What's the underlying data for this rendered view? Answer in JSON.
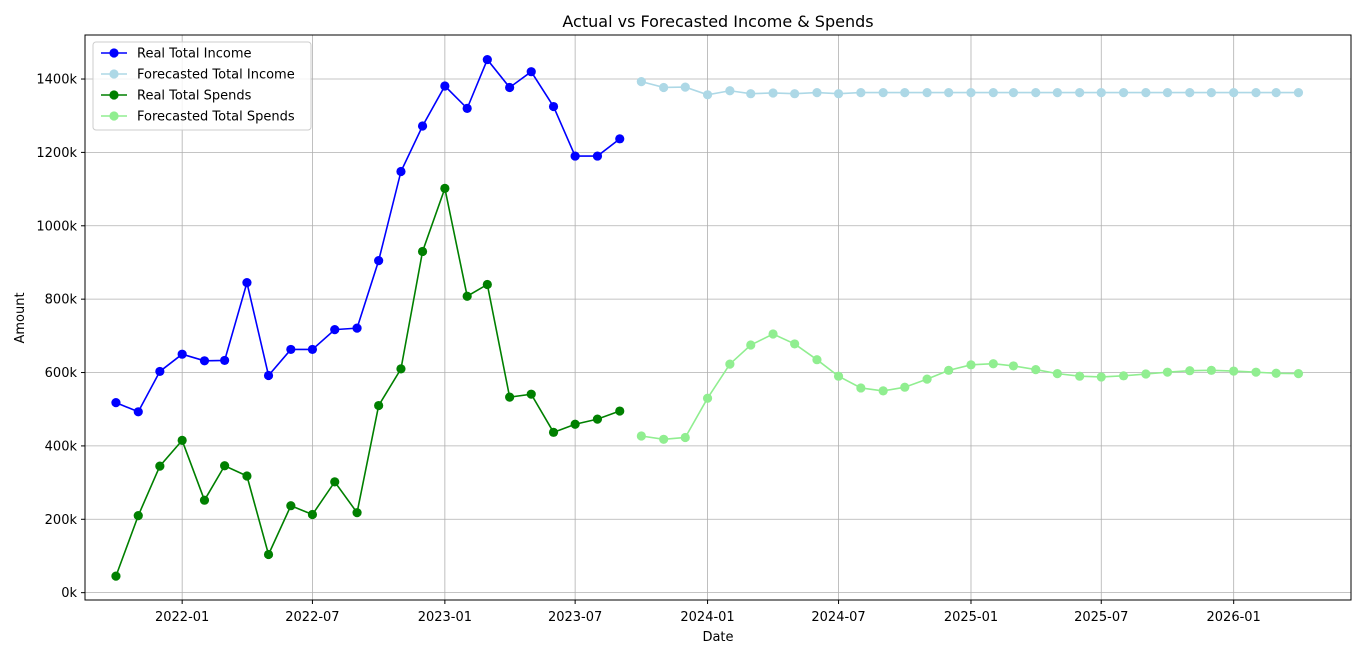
{
  "chart_data": {
    "type": "line",
    "title": "Actual vs Forecasted Income & Spends",
    "xlabel": "Date",
    "ylabel": "Amount",
    "x_tick_labels": [
      "2022-01",
      "2022-07",
      "2023-01",
      "2023-07",
      "2024-01",
      "2024-07",
      "2025-01",
      "2025-07",
      "2026-01"
    ],
    "y_tick_labels": [
      "0k",
      "200k",
      "400k",
      "600k",
      "800k",
      "1000k",
      "1200k",
      "1400k"
    ],
    "y_ticks": [
      0,
      200000,
      400000,
      600000,
      800000,
      1000000,
      1200000,
      1400000
    ],
    "xlim": [
      "2021-08-19",
      "2026-06-13"
    ],
    "ylim": [
      -20000,
      1520000
    ],
    "grid": true,
    "legend_position": "top-left",
    "series": [
      {
        "name": "Real Total Income",
        "color": "#0000ff",
        "x": [
          "2021-10-01",
          "2021-11-01",
          "2021-12-01",
          "2022-01-01",
          "2022-02-01",
          "2022-03-01",
          "2022-04-01",
          "2022-05-01",
          "2022-06-01",
          "2022-07-01",
          "2022-08-01",
          "2022-09-01",
          "2022-10-01",
          "2022-11-01",
          "2022-12-01",
          "2023-01-01",
          "2023-02-01",
          "2023-03-01",
          "2023-04-01",
          "2023-05-01",
          "2023-06-01",
          "2023-07-01",
          "2023-08-01",
          "2023-09-01"
        ],
        "values": [
          518000,
          493000,
          603000,
          650000,
          632000,
          633000,
          845000,
          592000,
          663000,
          663000,
          717000,
          721000,
          905000,
          1148000,
          1272000,
          1381000,
          1320000,
          1453000,
          1377000,
          1420000,
          1325000,
          1190000,
          1190000,
          1237000
        ]
      },
      {
        "name": "Forecasted Total Income",
        "color": "#add8e6",
        "x": [
          "2023-10-01",
          "2023-11-01",
          "2023-12-01",
          "2024-01-01",
          "2024-02-01",
          "2024-03-01",
          "2024-04-01",
          "2024-05-01",
          "2024-06-01",
          "2024-07-01",
          "2024-08-01",
          "2024-09-01",
          "2024-10-01",
          "2024-11-01",
          "2024-12-01",
          "2025-01-01",
          "2025-02-01",
          "2025-03-01",
          "2025-04-01",
          "2025-05-01",
          "2025-06-01",
          "2025-07-01",
          "2025-08-01",
          "2025-09-01",
          "2025-10-01",
          "2025-11-01",
          "2025-12-01",
          "2026-01-01",
          "2026-02-01",
          "2026-03-01",
          "2026-04-01"
        ],
        "values": [
          1393000,
          1377000,
          1378000,
          1357000,
          1368000,
          1360000,
          1362000,
          1360000,
          1363000,
          1360000,
          1363000,
          1363000,
          1363000,
          1363000,
          1363000,
          1363000,
          1363000,
          1363000,
          1363000,
          1363000,
          1363000,
          1363000,
          1363000,
          1363000,
          1363000,
          1363000,
          1363000,
          1363000,
          1363000,
          1363000,
          1363000
        ]
      },
      {
        "name": "Real Total Spends",
        "color": "#008000",
        "x": [
          "2021-10-01",
          "2021-11-01",
          "2021-12-01",
          "2022-01-01",
          "2022-02-01",
          "2022-03-01",
          "2022-04-01",
          "2022-05-01",
          "2022-06-01",
          "2022-07-01",
          "2022-08-01",
          "2022-09-01",
          "2022-10-01",
          "2022-11-01",
          "2022-12-01",
          "2023-01-01",
          "2023-02-01",
          "2023-03-01",
          "2023-04-01",
          "2023-05-01",
          "2023-06-01",
          "2023-07-01",
          "2023-08-01",
          "2023-09-01"
        ],
        "values": [
          45000,
          210000,
          345000,
          415000,
          252000,
          346000,
          318000,
          104000,
          237000,
          213000,
          302000,
          218000,
          510000,
          610000,
          930000,
          1102000,
          808000,
          840000,
          533000,
          541000,
          437000,
          459000,
          473000,
          495000
        ]
      },
      {
        "name": "Forecasted Total Spends",
        "color": "#90ee90",
        "x": [
          "2023-10-01",
          "2023-11-01",
          "2023-12-01",
          "2024-01-01",
          "2024-02-01",
          "2024-03-01",
          "2024-04-01",
          "2024-05-01",
          "2024-06-01",
          "2024-07-01",
          "2024-08-01",
          "2024-09-01",
          "2024-10-01",
          "2024-11-01",
          "2024-12-01",
          "2025-01-01",
          "2025-02-01",
          "2025-03-01",
          "2025-04-01",
          "2025-05-01",
          "2025-06-01",
          "2025-07-01",
          "2025-08-01",
          "2025-09-01",
          "2025-10-01",
          "2025-11-01",
          "2025-12-01",
          "2026-01-01",
          "2026-02-01",
          "2026-03-01",
          "2026-04-01"
        ],
        "values": [
          427000,
          418000,
          423000,
          530000,
          623000,
          675000,
          705000,
          678000,
          635000,
          590000,
          558000,
          550000,
          560000,
          582000,
          606000,
          621000,
          624000,
          618000,
          608000,
          597000,
          590000,
          588000,
          591000,
          596000,
          601000,
          605000,
          606000,
          604000,
          601000,
          598000,
          597000
        ]
      }
    ]
  }
}
